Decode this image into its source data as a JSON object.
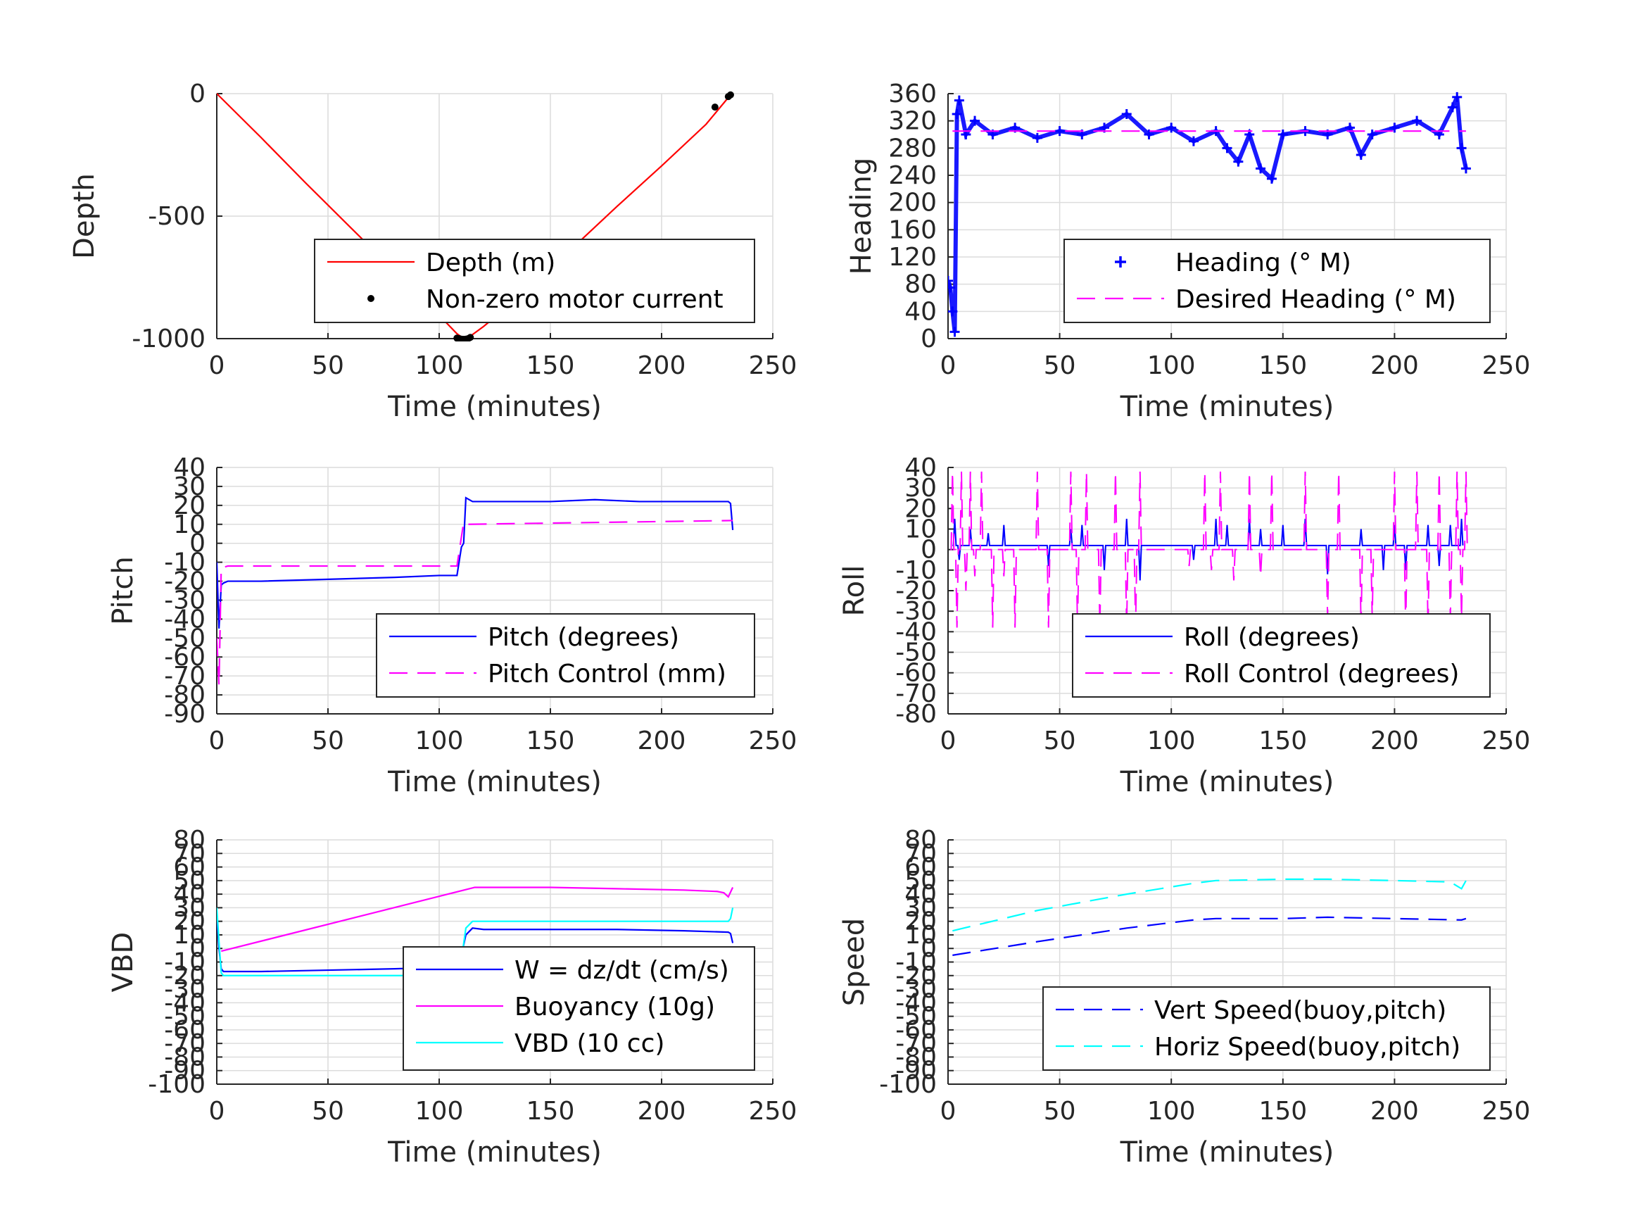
{
  "figure": {
    "background": "#ffffff",
    "grid_color": "#dcdcdc",
    "axis_color": "#262626"
  },
  "chart_data": [
    {
      "id": "depth",
      "type": "line",
      "xlabel": "Time (minutes)",
      "ylabel": "Depth",
      "xlim": [
        0,
        250
      ],
      "ylim": [
        -1000,
        0
      ],
      "xticks": [
        0,
        50,
        100,
        150,
        200,
        250
      ],
      "yticks": [
        0,
        -500,
        -1000
      ],
      "grid": true,
      "legend": {
        "placement": "bottom-right",
        "entries": [
          "Depth (m)",
          "Non-zero motor current"
        ]
      },
      "series": [
        {
          "name": "Depth (m)",
          "style": "line",
          "color": "#ff0000",
          "x": [
            0,
            20,
            40,
            60,
            80,
            100,
            108,
            111,
            114,
            120,
            140,
            160,
            180,
            200,
            220,
            231
          ],
          "y": [
            0,
            -180,
            -365,
            -545,
            -725,
            -905,
            -980,
            -1000,
            -990,
            -950,
            -800,
            -630,
            -460,
            -295,
            -125,
            -5
          ]
        },
        {
          "name": "Non-zero motor current",
          "style": "dot",
          "color": "#000000",
          "x": [
            108,
            109,
            110,
            111,
            112,
            113,
            114,
            224,
            230,
            231
          ],
          "y": [
            -998,
            -1000,
            -1002,
            -1003,
            -1002,
            -1000,
            -995,
            -55,
            -12,
            -5
          ]
        }
      ]
    },
    {
      "id": "heading",
      "type": "scatter",
      "xlabel": "Time (minutes)",
      "ylabel": "Heading",
      "xlim": [
        0,
        250
      ],
      "ylim": [
        0,
        360
      ],
      "xticks": [
        0,
        50,
        100,
        150,
        200,
        250
      ],
      "yticks": [
        0,
        40,
        80,
        120,
        160,
        200,
        240,
        280,
        320,
        360
      ],
      "grid": true,
      "legend": {
        "placement": "bottom-right",
        "entries": [
          "Heading (° M)",
          "Desired Heading (° M)"
        ]
      },
      "series": [
        {
          "name": "Heading (° M)",
          "style": "plus",
          "color": "#0000ff",
          "x": [
            0,
            1,
            2,
            3,
            4,
            5,
            8,
            12,
            20,
            30,
            40,
            50,
            60,
            70,
            80,
            90,
            100,
            110,
            120,
            125,
            130,
            135,
            140,
            145,
            150,
            160,
            170,
            180,
            185,
            190,
            200,
            210,
            220,
            226,
            228,
            230,
            232
          ],
          "y": [
            85,
            75,
            40,
            10,
            330,
            350,
            300,
            320,
            300,
            310,
            295,
            305,
            300,
            310,
            330,
            300,
            310,
            290,
            305,
            280,
            260,
            300,
            250,
            235,
            300,
            305,
            300,
            310,
            270,
            300,
            310,
            320,
            300,
            340,
            355,
            280,
            250
          ]
        },
        {
          "name": "Desired Heading (° M)",
          "style": "dashed",
          "color": "#ff00ff",
          "x": [
            2,
            232
          ],
          "y": [
            305,
            305
          ]
        }
      ]
    },
    {
      "id": "pitch",
      "type": "line",
      "xlabel": "Time (minutes)",
      "ylabel": "Pitch",
      "xlim": [
        0,
        250
      ],
      "ylim": [
        -90,
        40
      ],
      "xticks": [
        0,
        50,
        100,
        150,
        200,
        250
      ],
      "yticks": [
        40,
        30,
        20,
        10,
        0,
        -10,
        -20,
        -30,
        -40,
        -50,
        -60,
        -70,
        -80,
        -90
      ],
      "grid": true,
      "legend": {
        "placement": "bottom-right",
        "entries": [
          "Pitch (degrees)",
          "Pitch Control (mm)"
        ]
      },
      "series": [
        {
          "name": "Pitch (degrees)",
          "style": "line",
          "color": "#0000ff",
          "x": [
            0,
            1,
            2,
            3,
            5,
            20,
            50,
            80,
            100,
            108,
            110,
            111,
            112,
            115,
            130,
            150,
            170,
            190,
            210,
            230,
            231,
            232
          ],
          "y": [
            -10,
            -45,
            -22,
            -21,
            -20,
            -20,
            -19,
            -18,
            -17,
            -17,
            -2,
            0,
            24,
            22,
            22,
            22,
            23,
            22,
            22,
            22,
            21,
            7
          ]
        },
        {
          "name": "Pitch Control (mm)",
          "style": "dashed",
          "color": "#ff00ff",
          "x": [
            0,
            1,
            2,
            5,
            100,
            107,
            108,
            111,
            112,
            232
          ],
          "y": [
            -50,
            -75,
            -13,
            -12,
            -12,
            -12,
            -12,
            11,
            10,
            12
          ]
        }
      ]
    },
    {
      "id": "roll",
      "type": "line",
      "xlabel": "Time (minutes)",
      "ylabel": "Roll",
      "xlim": [
        0,
        250
      ],
      "ylim": [
        -80,
        40
      ],
      "xticks": [
        0,
        50,
        100,
        150,
        200,
        250
      ],
      "yticks": [
        40,
        30,
        20,
        10,
        0,
        -10,
        -20,
        -30,
        -40,
        -50,
        -60,
        -70,
        -80
      ],
      "grid": true,
      "legend": {
        "placement": "bottom-right",
        "entries": [
          "Roll (degrees)",
          "Roll Control (degrees)"
        ]
      },
      "series": [
        {
          "name": "Roll (degrees)",
          "style": "line",
          "color": "#0000ff",
          "spikes": {
            "baseline": 2,
            "x": [
              3,
              5,
              10,
              18,
              25,
              45,
              55,
              60,
              70,
              80,
              86,
              110,
              120,
              125,
              135,
              140,
              150,
              160,
              170,
              185,
              195,
              200,
              205,
              215,
              220,
              225,
              230
            ],
            "y": [
              15,
              -5,
              10,
              8,
              12,
              -8,
              10,
              12,
              -10,
              15,
              -15,
              -5,
              15,
              12,
              15,
              10,
              12,
              15,
              -12,
              10,
              -10,
              12,
              -10,
              12,
              -8,
              12,
              15
            ]
          }
        },
        {
          "name": "Roll Control (degrees)",
          "style": "dashed",
          "color": "#ff00ff",
          "spikes": {
            "baseline": 0,
            "x": [
              2,
              4,
              6,
              8,
              10,
              12,
              15,
              20,
              25,
              30,
              40,
              45,
              55,
              58,
              62,
              68,
              75,
              80,
              84,
              86,
              108,
              115,
              118,
              122,
              128,
              135,
              140,
              145,
              160,
              170,
              175,
              185,
              190,
              200,
              205,
              210,
              215,
              220,
              225,
              228,
              230,
              232
            ],
            "y": [
              38,
              -38,
              38,
              -20,
              38,
              -13,
              38,
              -38,
              -13,
              -38,
              38,
              -38,
              38,
              -38,
              38,
              -38,
              38,
              -38,
              -38,
              38,
              -8,
              38,
              -10,
              38,
              -15,
              38,
              -13,
              38,
              38,
              -33,
              38,
              -38,
              -33,
              38,
              -38,
              38,
              -38,
              38,
              -33,
              38,
              -33,
              38
            ]
          }
        }
      ]
    },
    {
      "id": "vbd",
      "type": "line",
      "xlabel": "Time (minutes)",
      "ylabel": "VBD",
      "xlim": [
        0,
        250
      ],
      "ylim": [
        -100,
        80
      ],
      "xticks": [
        0,
        50,
        100,
        150,
        200,
        250
      ],
      "yticks": [
        80,
        70,
        60,
        50,
        40,
        30,
        20,
        10,
        0,
        -10,
        -20,
        -30,
        -40,
        -50,
        -60,
        -70,
        -80,
        -90,
        -100
      ],
      "ytick_labels": [
        "80",
        "70",
        "60",
        "50",
        "40",
        "30",
        "20",
        "10",
        "0",
        "-10",
        "-20",
        "-30",
        "-40",
        "-50",
        "-60",
        "-70",
        "-80",
        "-90",
        "-100"
      ],
      "grid": true,
      "legend": {
        "placement": "bottom-right",
        "entries": [
          "W = dz/dt (cm/s)",
          "Buoyancy (10g)",
          "VBD (10 cc)"
        ]
      },
      "series": [
        {
          "name": "W = dz/dt (cm/s)",
          "style": "line",
          "color": "#0000ff",
          "x": [
            0,
            1,
            2,
            3,
            20,
            50,
            80,
            100,
            108,
            110,
            112,
            115,
            120,
            150,
            180,
            210,
            230,
            231,
            232
          ],
          "y": [
            25,
            0,
            -15,
            -17,
            -17,
            -16,
            -15,
            -14,
            -14,
            -5,
            10,
            15,
            14,
            14,
            14,
            13,
            12,
            11,
            4
          ]
        },
        {
          "name": "Buoyancy (10g)",
          "style": "line",
          "color": "#ff00ff",
          "x": [
            2,
            116,
            150,
            180,
            210,
            225,
            228,
            230,
            232
          ],
          "y": [
            -2,
            45,
            45,
            44,
            43,
            42,
            41,
            38,
            45
          ]
        },
        {
          "name": "VBD (10 cc)",
          "style": "line",
          "color": "#00ffff",
          "x": [
            0,
            1,
            2,
            3,
            20,
            108,
            110,
            112,
            115,
            230,
            231,
            232
          ],
          "y": [
            30,
            5,
            -18,
            -20,
            -20,
            -20,
            -8,
            15,
            20,
            20,
            22,
            30
          ]
        }
      ]
    },
    {
      "id": "speed",
      "type": "line",
      "xlabel": "Time (minutes)",
      "ylabel": "Speed",
      "xlim": [
        0,
        250
      ],
      "ylim": [
        -100,
        80
      ],
      "xticks": [
        0,
        50,
        100,
        150,
        200,
        250
      ],
      "yticks": [
        80,
        70,
        60,
        50,
        40,
        30,
        20,
        10,
        0,
        -10,
        -20,
        -30,
        -40,
        -50,
        -60,
        -70,
        -80,
        -90,
        -100
      ],
      "ytick_labels": [
        "80",
        "70",
        "60",
        "50",
        "40",
        "30",
        "20",
        "10",
        "0",
        "-10",
        "-20",
        "-30",
        "-40",
        "-50",
        "-60",
        "-70",
        "-80",
        "-90",
        "-100"
      ],
      "grid": true,
      "legend": {
        "placement": "bottom-right",
        "entries": [
          "Vert Speed(buoy,pitch)",
          "Horiz Speed(buoy,pitch)"
        ]
      },
      "series": [
        {
          "name": "Vert Speed(buoy,pitch)",
          "style": "dashed",
          "color": "#0000ff",
          "x": [
            2,
            40,
            80,
            110,
            120,
            150,
            170,
            200,
            230,
            232
          ],
          "y": [
            -5,
            5,
            15,
            21,
            22,
            22,
            23,
            22,
            21,
            22
          ]
        },
        {
          "name": "Horiz Speed(buoy,pitch)",
          "style": "dashed",
          "color": "#00ffff",
          "x": [
            2,
            40,
            80,
            110,
            120,
            150,
            170,
            200,
            225,
            228,
            230,
            232
          ],
          "y": [
            13,
            28,
            40,
            48,
            50,
            51,
            51,
            50,
            49,
            46,
            44,
            50
          ]
        }
      ]
    }
  ]
}
